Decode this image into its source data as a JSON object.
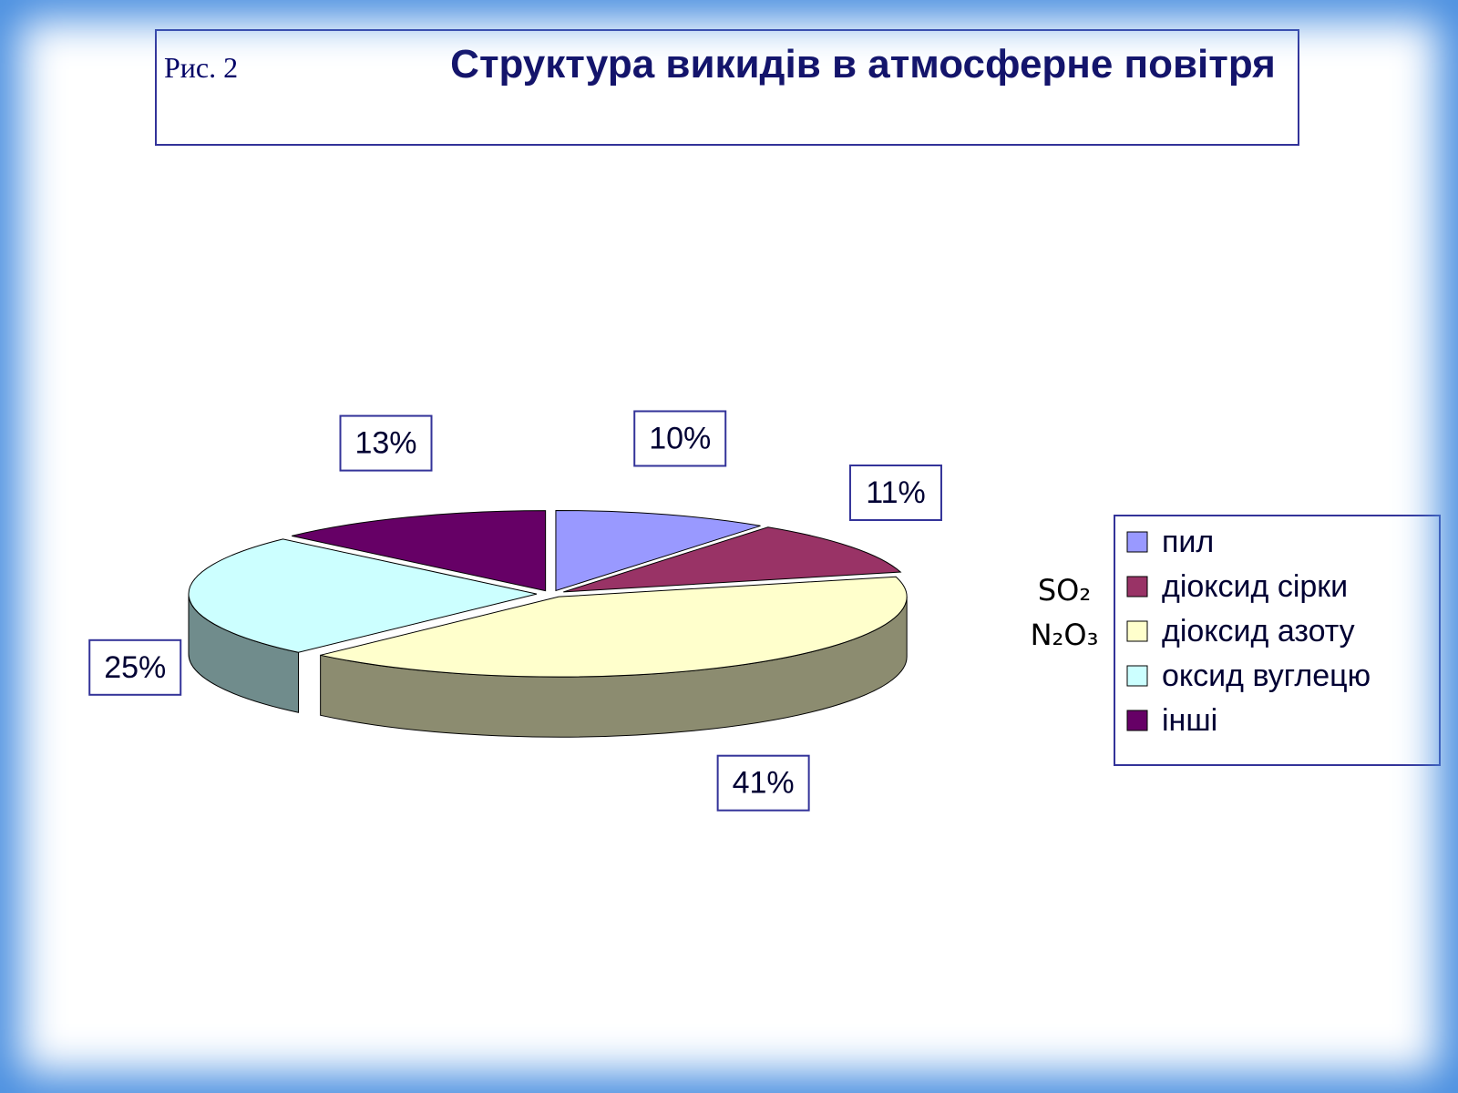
{
  "chart_data": {
    "type": "pie3d",
    "figure_label": "Рис. 2",
    "title": "Структура викидів в атмосферне повітря",
    "categories": [
      "пил",
      "діоксид сірки",
      "діоксид азоту",
      "оксид вуглецю",
      "інші"
    ],
    "values": [
      10,
      11,
      41,
      25,
      13
    ],
    "value_labels": [
      "10%",
      "11%",
      "41%",
      "25%",
      "13%"
    ],
    "colors": [
      "#9999ff",
      "#993366",
      "#ffffcc",
      "#ccffff",
      "#660066"
    ],
    "legend": "right",
    "annotations": [
      "SO₂",
      "N₂O₃"
    ]
  }
}
